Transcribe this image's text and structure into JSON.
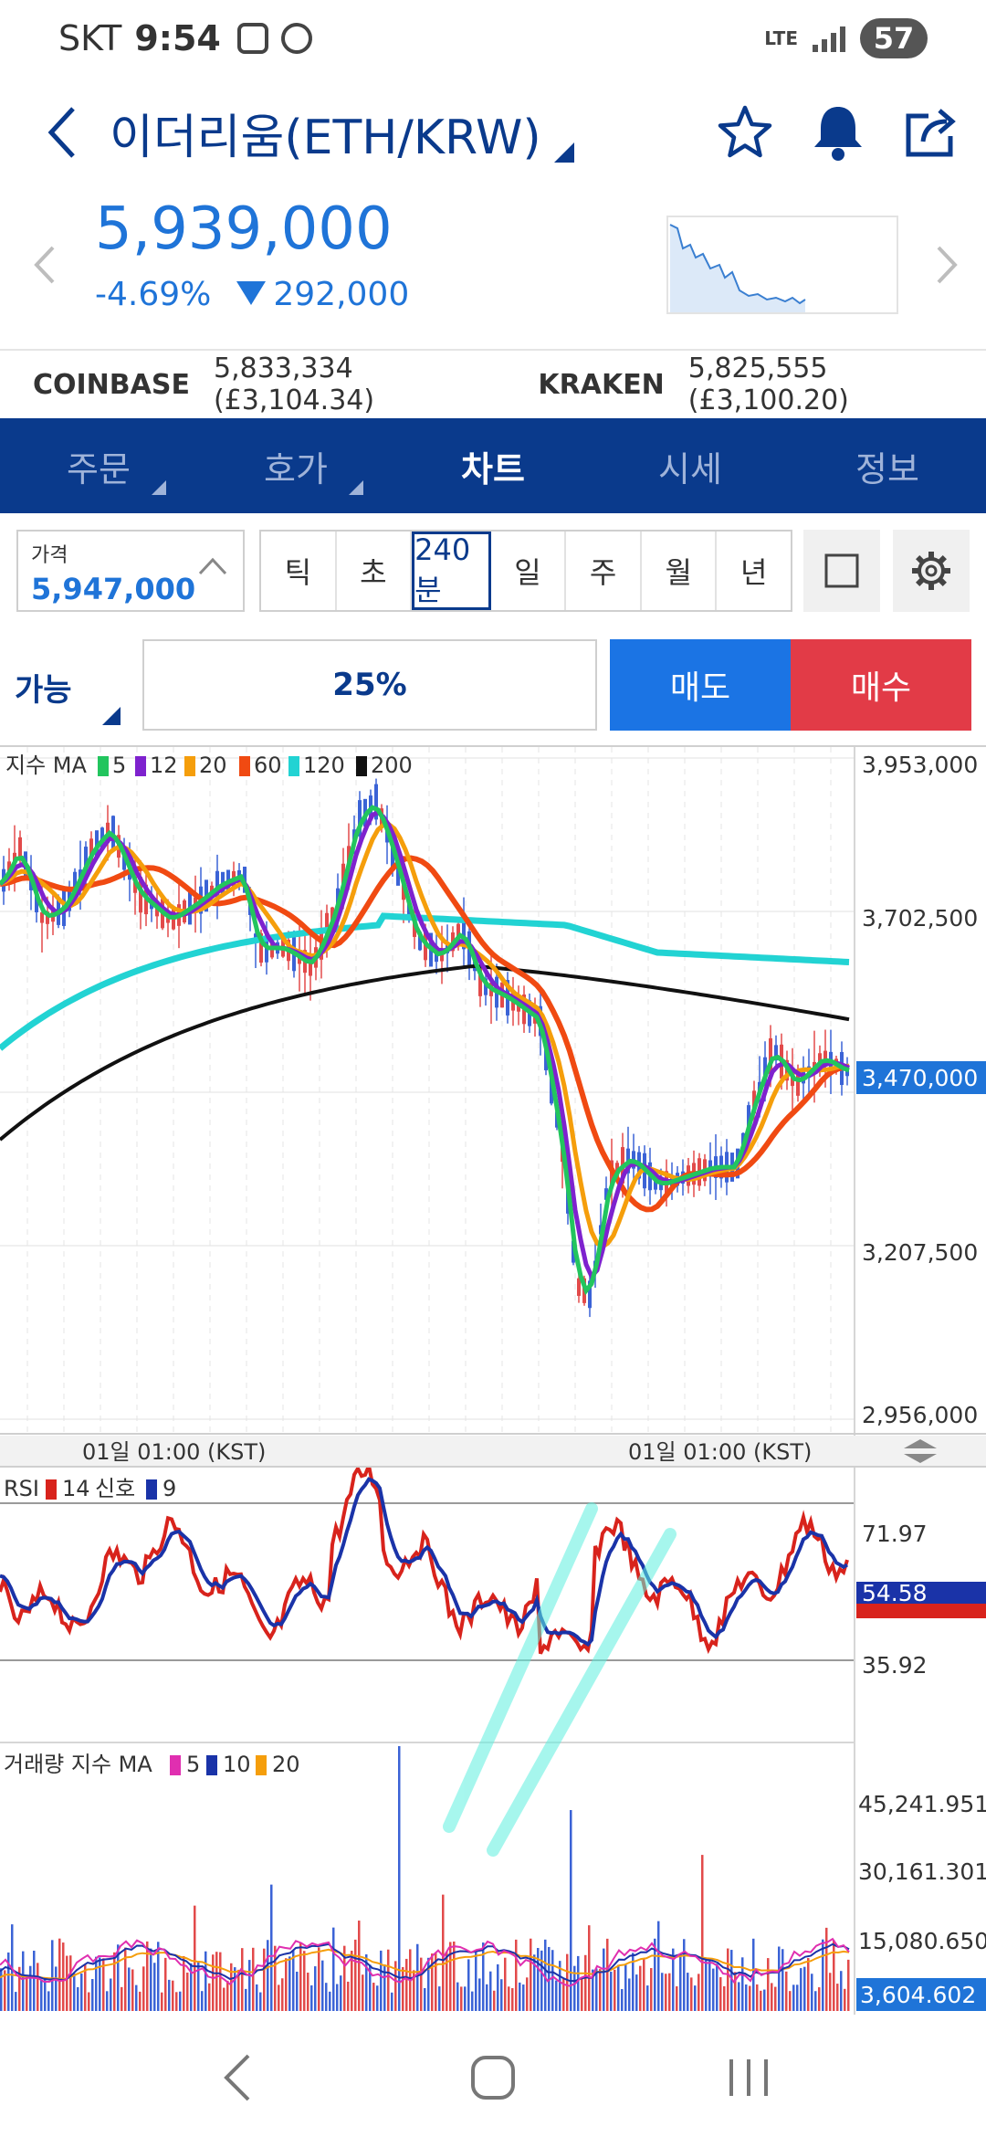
{
  "status_bar": {
    "carrier": "SKT",
    "time": "9:54",
    "network": "LTE",
    "battery": "57"
  },
  "header": {
    "title": "이더리움(ETH/KRW)"
  },
  "price": {
    "current": "5,939,000",
    "change_pct": "-4.69%",
    "change_abs": "292,000"
  },
  "exchanges": [
    {
      "name": "COINBASE",
      "value": "5,833,334 (£3,104.34)"
    },
    {
      "name": "KRAKEN",
      "value": "5,825,555 (£3,100.20)"
    }
  ],
  "tabs": [
    {
      "label": "주문",
      "has_menu": true
    },
    {
      "label": "호가",
      "has_menu": true
    },
    {
      "label": "차트",
      "active": true
    },
    {
      "label": "시세"
    },
    {
      "label": "정보"
    }
  ],
  "price_input": {
    "label": "가격",
    "value": "5,947,000"
  },
  "periods": [
    "틱",
    "초",
    "240분",
    "일",
    "주",
    "월",
    "년"
  ],
  "active_period": "240분",
  "order": {
    "available_label": "가능",
    "ratio": "25%",
    "sell_label": "매도",
    "buy_label": "매수"
  },
  "colors": {
    "navy": "#0a3a8c",
    "blue": "#1f74d8",
    "sell": "#1b74e4",
    "buy": "#e23b47",
    "rsi": "#d8231c",
    "signal": "#1a33a8"
  },
  "chart": {
    "ma_legend": {
      "prefix": "지수 MA",
      "items": [
        {
          "value": "5",
          "color": "#22c55e"
        },
        {
          "value": "12",
          "color": "#7e22ce"
        },
        {
          "value": "20",
          "color": "#f59e0b"
        },
        {
          "value": "60",
          "color": "#f04a12"
        },
        {
          "value": "120",
          "color": "#22d3d3"
        },
        {
          "value": "200",
          "color": "#111111"
        }
      ]
    },
    "y_labels": [
      "3,953,000",
      "3,702,500",
      "3,207,500",
      "2,956,000"
    ],
    "current_price_label": "3,470,000",
    "date_labels": [
      "01일 01:00 (KST)",
      "01일 01:00 (KST)"
    ],
    "rsi_legend": {
      "name": "RSI",
      "period": "14",
      "signal_name": "신호",
      "signal_period": "9"
    },
    "rsi_labels": [
      "71.97",
      "35.92"
    ],
    "rsi_current": "54.58",
    "volume_legend": {
      "prefix": "거래량 지수 MA",
      "items": [
        {
          "value": "5",
          "color": "#e02fb0"
        },
        {
          "value": "10",
          "color": "#1a33a8"
        },
        {
          "value": "20",
          "color": "#f59e0b"
        }
      ]
    },
    "volume_labels": [
      "45,241.951",
      "30,161.301",
      "15,080.650"
    ],
    "volume_current": "3,604.602"
  }
}
